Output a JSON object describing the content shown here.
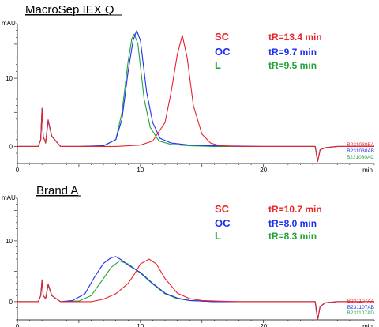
{
  "colors": {
    "SC": "#e8242a",
    "OC": "#1d2ff0",
    "L": "#22a33a"
  },
  "chart_data": [
    {
      "type": "line",
      "title": "MacroSep IEX Q",
      "ylabel": "mAU",
      "xlabel": "min",
      "xlim": [
        0,
        29
      ],
      "ylim": [
        -2.5,
        18
      ],
      "xticks": [
        0,
        10,
        20
      ],
      "yticks": [
        0,
        10
      ],
      "legend": [
        {
          "code": "SC",
          "tr": "tR=13.4 min",
          "color": "#e8242a"
        },
        {
          "code": "OC",
          "tr": "tR=9.7 min",
          "color": "#1d2ff0"
        },
        {
          "code": "L",
          "tr": "tR=9.5 min",
          "color": "#22a33a"
        }
      ],
      "sample_ids": [
        {
          "text": "B231030BA",
          "color": "#e8242a"
        },
        {
          "text": "B231030AB",
          "color": "#1d2ff0"
        },
        {
          "text": "B231030AC",
          "color": "#22a33a"
        }
      ],
      "series": [
        {
          "name": "SC",
          "color": "#e8242a",
          "x": [
            0,
            1.7,
            1.9,
            2.0,
            2.1,
            2.3,
            2.5,
            2.8,
            3.5,
            5,
            8,
            10,
            11,
            12,
            12.5,
            13,
            13.4,
            13.8,
            14.3,
            15,
            15.7,
            16.5,
            18,
            20,
            23,
            24.2,
            24.4,
            24.6,
            25.0,
            26,
            29
          ],
          "y": [
            0,
            0,
            1,
            5.5,
            1.5,
            0.5,
            3.8,
            1.5,
            0,
            0,
            0,
            0.2,
            0.8,
            3.5,
            8,
            13.5,
            16.3,
            13,
            6,
            1.8,
            0.5,
            0.1,
            0,
            0,
            0,
            0,
            -2.2,
            -0.5,
            -0.2,
            0,
            0
          ]
        },
        {
          "name": "OC",
          "color": "#1d2ff0",
          "x": [
            0,
            1.7,
            1.9,
            2.0,
            2.1,
            2.3,
            2.5,
            2.8,
            3.5,
            5,
            7,
            8,
            8.5,
            9,
            9.4,
            9.7,
            10.0,
            10.5,
            11,
            11.6,
            12.5,
            14,
            16,
            20,
            23,
            24.2,
            24.4,
            24.6,
            25.0,
            26,
            29
          ],
          "y": [
            0,
            0,
            1,
            5.6,
            1.5,
            0.5,
            3.9,
            1.5,
            0,
            0,
            0.1,
            1,
            4,
            11,
            15.5,
            17,
            15.5,
            8,
            3.5,
            1.2,
            0.5,
            0.2,
            0.1,
            0,
            0,
            0,
            -2.2,
            -0.5,
            -0.2,
            0,
            0
          ]
        },
        {
          "name": "L",
          "color": "#22a33a",
          "x": [
            0,
            1.7,
            1.9,
            2.0,
            2.1,
            2.3,
            2.5,
            2.8,
            3.5,
            5,
            7,
            8,
            8.5,
            9,
            9.3,
            9.5,
            9.8,
            10.3,
            10.8,
            11.5,
            12.5,
            14,
            16,
            20,
            23,
            24.2,
            24.4,
            24.6,
            25.0,
            26,
            29
          ],
          "y": [
            0,
            0,
            1,
            5.4,
            1.5,
            0.5,
            3.7,
            1.5,
            0,
            0,
            0.1,
            1,
            5,
            12.5,
            15.8,
            16.5,
            15,
            7,
            2.8,
            0.8,
            0.3,
            0.1,
            0,
            0,
            0,
            0,
            -2.2,
            -0.5,
            -0.2,
            0,
            0
          ]
        }
      ]
    },
    {
      "type": "line",
      "title": "Brand A",
      "ylabel": "mAU",
      "xlabel": "min",
      "xlim": [
        0,
        29
      ],
      "ylim": [
        -3,
        17
      ],
      "xticks": [
        0,
        10,
        20
      ],
      "yticks": [
        0,
        10
      ],
      "legend": [
        {
          "code": "SC",
          "tr": "tR=10.7 min",
          "color": "#e8242a"
        },
        {
          "code": "OC",
          "tr": "tR=8.0 min",
          "color": "#1d2ff0"
        },
        {
          "code": "L",
          "tr": "tR=8.3 min",
          "color": "#22a33a"
        }
      ],
      "sample_ids": [
        {
          "text": "B231107AA",
          "color": "#e8242a"
        },
        {
          "text": "B231107AB",
          "color": "#1d2ff0"
        },
        {
          "text": "B231107AD",
          "color": "#22a33a"
        }
      ],
      "series": [
        {
          "name": "SC",
          "color": "#e8242a",
          "x": [
            0,
            1.7,
            1.9,
            2.0,
            2.1,
            2.3,
            2.5,
            2.8,
            3.5,
            5,
            6,
            7,
            8,
            9,
            9.5,
            10,
            10.7,
            11.3,
            12,
            13,
            14,
            15,
            16,
            18,
            20,
            23,
            24.2,
            24.4,
            24.6,
            25.0,
            26,
            29
          ],
          "y": [
            0,
            0,
            1,
            3.5,
            1,
            0.5,
            2.8,
            1,
            0,
            0,
            0,
            0.4,
            1.3,
            3,
            4.5,
            6.2,
            7,
            6.2,
            3.8,
            1.4,
            0.5,
            0.2,
            0.1,
            0,
            0,
            0,
            0,
            -3,
            -0.8,
            -0.2,
            0,
            0
          ]
        },
        {
          "name": "OC",
          "color": "#1d2ff0",
          "x": [
            0,
            1.7,
            1.9,
            2.0,
            2.1,
            2.3,
            2.5,
            2.8,
            3.5,
            4.5,
            5.5,
            6.2,
            7,
            7.6,
            8.0,
            8.5,
            9,
            10,
            11,
            12,
            13,
            14,
            16,
            20,
            23,
            24.2,
            24.4,
            24.6,
            25.0,
            26,
            29
          ],
          "y": [
            0,
            0,
            1,
            3.6,
            1,
            0.5,
            2.9,
            1,
            0,
            0.2,
            1.3,
            3.8,
            6.3,
            7.2,
            7.4,
            6.8,
            6,
            4.8,
            3,
            1.4,
            0.6,
            0.2,
            0,
            0,
            0,
            0,
            -3,
            -0.8,
            -0.2,
            0,
            0
          ]
        },
        {
          "name": "L",
          "color": "#22a33a",
          "x": [
            0,
            1.7,
            1.9,
            2.0,
            2.1,
            2.3,
            2.5,
            2.8,
            3.5,
            5,
            6,
            7,
            7.6,
            8.3,
            9,
            10,
            11,
            12,
            13,
            14,
            16,
            20,
            23,
            24.2,
            24.4,
            24.6,
            25.0,
            26,
            29
          ],
          "y": [
            0,
            0,
            1,
            3.4,
            1,
            0.5,
            2.7,
            1,
            0,
            0.1,
            1,
            3.8,
            5.6,
            6.7,
            6.2,
            4.7,
            2.9,
            1.3,
            0.5,
            0.2,
            0,
            0,
            0,
            0,
            -3,
            -0.8,
            -0.2,
            0,
            0
          ]
        }
      ]
    }
  ]
}
